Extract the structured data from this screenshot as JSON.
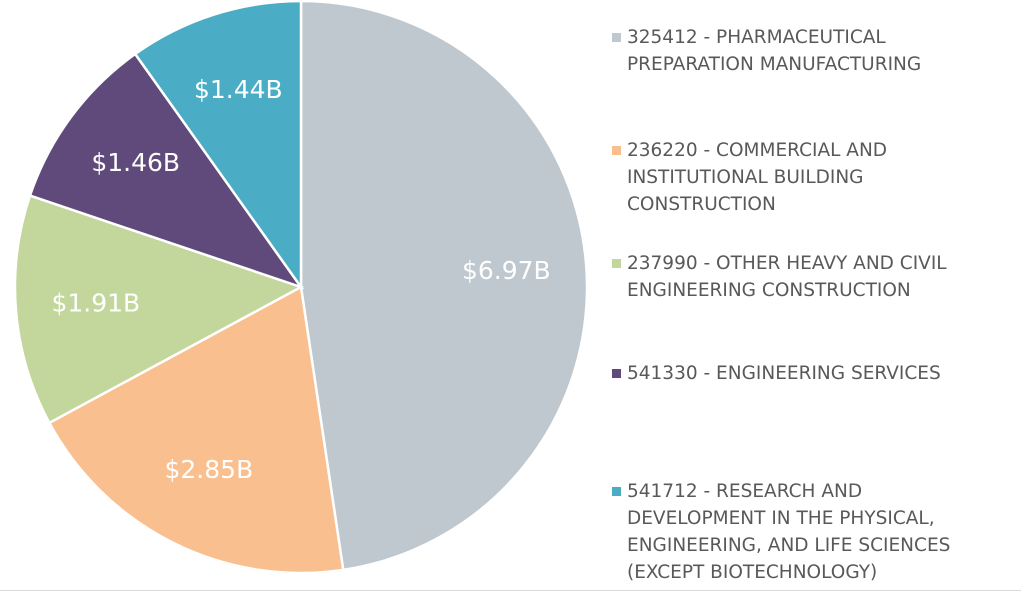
{
  "chart_data": {
    "type": "pie",
    "categories": [
      "325412 - PHARMACEUTICAL PREPARATION MANUFACTURING",
      "236220 - COMMERCIAL AND INSTITUTIONAL BUILDING CONSTRUCTION",
      "237990 - OTHER HEAVY AND CIVIL ENGINEERING CONSTRUCTION",
      "541330 - ENGINEERING SERVICES",
      "541712 - RESEARCH AND DEVELOPMENT IN THE PHYSICAL, ENGINEERING, AND LIFE SCIENCES (EXCEPT BIOTECHNOLOGY)"
    ],
    "values": [
      6.97,
      2.85,
      1.91,
      1.46,
      1.44
    ],
    "value_labels": [
      "$6.97B",
      "$2.85B",
      "$1.91B",
      "$1.46B",
      "$1.44B"
    ],
    "colors": [
      "#bfc8ce",
      "#f9bf8f",
      "#c3d69b",
      "#604a7b",
      "#4bacc6"
    ],
    "legend": "right"
  }
}
